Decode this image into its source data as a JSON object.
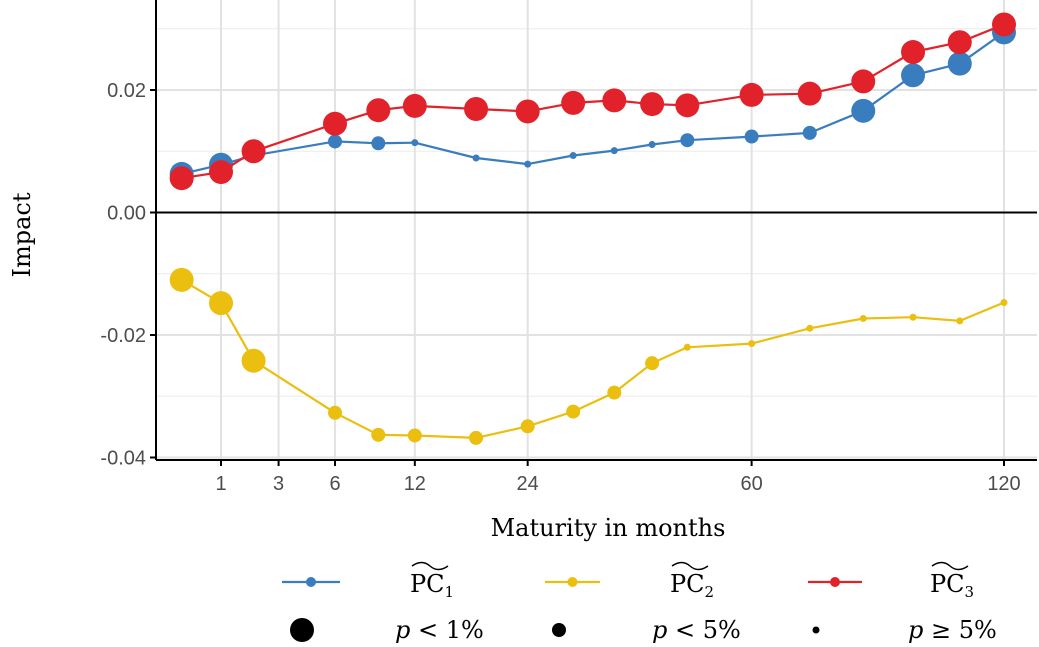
{
  "chart_data": {
    "type": "line",
    "xlabel": "Maturity in months",
    "ylabel": "Impact",
    "x_ticks": [
      1,
      3,
      6,
      12,
      24,
      60,
      120
    ],
    "x_tick_labels": [
      "1",
      "3",
      "6",
      "12",
      "24",
      "60",
      "120"
    ],
    "y_ticks": [
      -0.04,
      -0.02,
      0.0,
      0.02
    ],
    "y_tick_labels": [
      "-0.04",
      "-0.02",
      "0.00",
      "0.02"
    ],
    "ylim": [
      -0.04,
      0.034
    ],
    "x_scale": "square-root",
    "grid": true,
    "legend_position": "bottom",
    "series": [
      {
        "name": "PC1",
        "legend_label_main": "PC",
        "legend_label_sub": "1",
        "color": "#3a7dbf",
        "points": [
          {
            "x": 0.25,
            "y": 0.0063,
            "sig": "p<1%"
          },
          {
            "x": 1,
            "y": 0.0078,
            "sig": "p<1%"
          },
          {
            "x": 2,
            "y": 0.0093,
            "sig": "p<5%"
          },
          {
            "x": 6,
            "y": 0.0116,
            "sig": "p<5%"
          },
          {
            "x": 9,
            "y": 0.0113,
            "sig": "p<5%"
          },
          {
            "x": 12,
            "y": 0.0114,
            "sig": "p>=5%"
          },
          {
            "x": 18,
            "y": 0.0089,
            "sig": "p>=5%"
          },
          {
            "x": 24,
            "y": 0.0079,
            "sig": "p>=5%"
          },
          {
            "x": 30,
            "y": 0.0093,
            "sig": "p>=5%"
          },
          {
            "x": 36,
            "y": 0.0101,
            "sig": "p>=5%"
          },
          {
            "x": 42,
            "y": 0.0111,
            "sig": "p>=5%"
          },
          {
            "x": 48,
            "y": 0.0118,
            "sig": "p<5%"
          },
          {
            "x": 60,
            "y": 0.0124,
            "sig": "p<5%"
          },
          {
            "x": 72,
            "y": 0.013,
            "sig": "p<5%"
          },
          {
            "x": 84,
            "y": 0.0166,
            "sig": "p<1%"
          },
          {
            "x": 96,
            "y": 0.0224,
            "sig": "p<1%"
          },
          {
            "x": 108,
            "y": 0.0243,
            "sig": "p<1%"
          },
          {
            "x": 120,
            "y": 0.0294,
            "sig": "p<1%"
          }
        ]
      },
      {
        "name": "PC2",
        "legend_label_main": "PC",
        "legend_label_sub": "2",
        "color": "#eabf0f",
        "points": [
          {
            "x": 0.25,
            "y": -0.011,
            "sig": "p<1%"
          },
          {
            "x": 1,
            "y": -0.0148,
            "sig": "p<1%"
          },
          {
            "x": 2,
            "y": -0.0242,
            "sig": "p<1%"
          },
          {
            "x": 6,
            "y": -0.0327,
            "sig": "p<5%"
          },
          {
            "x": 9,
            "y": -0.0363,
            "sig": "p<5%"
          },
          {
            "x": 12,
            "y": -0.0364,
            "sig": "p<5%"
          },
          {
            "x": 18,
            "y": -0.0368,
            "sig": "p<5%"
          },
          {
            "x": 24,
            "y": -0.0349,
            "sig": "p<5%"
          },
          {
            "x": 30,
            "y": -0.0325,
            "sig": "p<5%"
          },
          {
            "x": 36,
            "y": -0.0294,
            "sig": "p<5%"
          },
          {
            "x": 42,
            "y": -0.0246,
            "sig": "p<5%"
          },
          {
            "x": 48,
            "y": -0.022,
            "sig": "p>=5%"
          },
          {
            "x": 60,
            "y": -0.0214,
            "sig": "p>=5%"
          },
          {
            "x": 72,
            "y": -0.0189,
            "sig": "p>=5%"
          },
          {
            "x": 84,
            "y": -0.0173,
            "sig": "p>=5%"
          },
          {
            "x": 96,
            "y": -0.0171,
            "sig": "p>=5%"
          },
          {
            "x": 108,
            "y": -0.0177,
            "sig": "p>=5%"
          },
          {
            "x": 120,
            "y": -0.0147,
            "sig": "p>=5%"
          }
        ]
      },
      {
        "name": "PC3",
        "legend_label_main": "PC",
        "legend_label_sub": "3",
        "color": "#e2222a",
        "points": [
          {
            "x": 0.25,
            "y": 0.0056,
            "sig": "p<1%"
          },
          {
            "x": 1,
            "y": 0.0066,
            "sig": "p<1%"
          },
          {
            "x": 2,
            "y": 0.01,
            "sig": "p<1%"
          },
          {
            "x": 6,
            "y": 0.0145,
            "sig": "p<1%"
          },
          {
            "x": 9,
            "y": 0.0167,
            "sig": "p<1%"
          },
          {
            "x": 12,
            "y": 0.0174,
            "sig": "p<1%"
          },
          {
            "x": 18,
            "y": 0.0169,
            "sig": "p<1%"
          },
          {
            "x": 24,
            "y": 0.0165,
            "sig": "p<1%"
          },
          {
            "x": 30,
            "y": 0.0179,
            "sig": "p<1%"
          },
          {
            "x": 36,
            "y": 0.0183,
            "sig": "p<1%"
          },
          {
            "x": 42,
            "y": 0.0177,
            "sig": "p<1%"
          },
          {
            "x": 48,
            "y": 0.0175,
            "sig": "p<1%"
          },
          {
            "x": 60,
            "y": 0.0192,
            "sig": "p<1%"
          },
          {
            "x": 72,
            "y": 0.0194,
            "sig": "p<1%"
          },
          {
            "x": 84,
            "y": 0.0214,
            "sig": "p<1%"
          },
          {
            "x": 96,
            "y": 0.0262,
            "sig": "p<1%"
          },
          {
            "x": 108,
            "y": 0.0278,
            "sig": "p<1%"
          },
          {
            "x": 120,
            "y": 0.0307,
            "sig": "p<1%"
          }
        ]
      }
    ],
    "size_legend": [
      {
        "sig": "p<1%",
        "label_lhs": "p",
        "label_op": "<",
        "label_rhs": "1%"
      },
      {
        "sig": "p<5%",
        "label_lhs": "p",
        "label_op": "<",
        "label_rhs": "5%"
      },
      {
        "sig": "p>=5%",
        "label_lhs": "p",
        "label_op": "≥",
        "label_rhs": "5%"
      }
    ]
  }
}
